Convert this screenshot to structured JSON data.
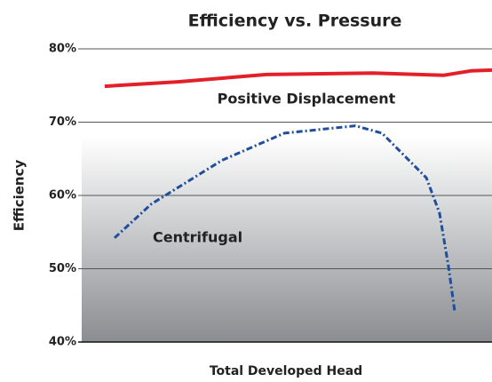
{
  "chart_data": {
    "type": "line",
    "title": "Efficiency vs. Pressure",
    "y_label": "Efficiency",
    "x_label": "Total Developed Head",
    "xlim": [
      0,
      100
    ],
    "ylim": [
      40,
      80
    ],
    "yticks": [
      {
        "value": 40,
        "label": "40%"
      },
      {
        "value": 50,
        "label": "50%"
      },
      {
        "value": 60,
        "label": "60%"
      },
      {
        "value": 70,
        "label": "70%"
      },
      {
        "value": 80,
        "label": "80%"
      }
    ],
    "grid": true,
    "series": [
      {
        "name": "Positive Displacement",
        "color": "#e3202a",
        "style": "solid",
        "x": [
          5.6,
          23.4,
          45,
          71,
          88.3,
          94.8,
          100
        ],
        "values": [
          74.9,
          75.5,
          76.5,
          76.7,
          76.4,
          77,
          77.1
        ]
      },
      {
        "name": "Centrifugal",
        "color": "#1f4e9c",
        "style": "dashdot",
        "x": [
          8,
          16.9,
          34.2,
          49.4,
          66.7,
          73.2,
          84,
          87.2,
          89.4,
          90.9
        ],
        "values": [
          54.2,
          58.8,
          64.8,
          68.5,
          69.5,
          68.5,
          62.4,
          57.6,
          50.3,
          44.2
        ]
      }
    ]
  }
}
